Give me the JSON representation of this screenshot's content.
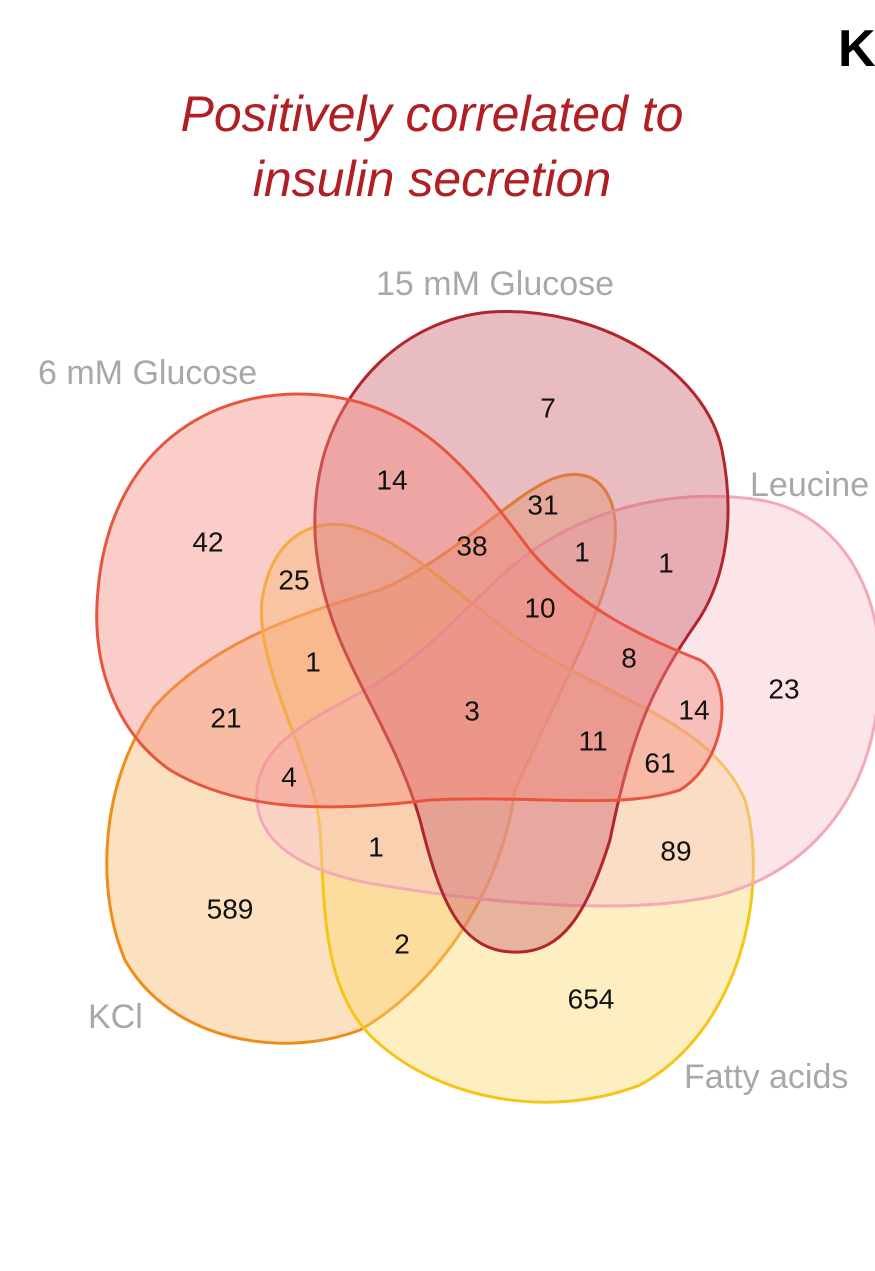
{
  "panel_letter": "K",
  "title_lines": [
    "Positively correlated to",
    "insulin secretion"
  ],
  "sets": [
    {
      "key": "g6",
      "label": "6 mM Glucose",
      "fill": "#f4877c",
      "stroke": "#e8553e"
    },
    {
      "key": "g15",
      "label": "15 mM Glucose",
      "fill": "#c8606c",
      "stroke": "#b0262c"
    },
    {
      "key": "leu",
      "label": "Leucine",
      "fill": "#f9c1ca",
      "stroke": "#f4a9b6"
    },
    {
      "key": "fa",
      "label": "Fatty acids",
      "fill": "#fcd86e",
      "stroke": "#f5c518"
    },
    {
      "key": "kcl",
      "label": "KCl",
      "fill": "#f9b768",
      "stroke": "#ee8d1a"
    }
  ],
  "chart_data": {
    "type": "venn",
    "set_names": [
      "6 mM Glucose",
      "15 mM Glucose",
      "Leucine",
      "Fatty acids",
      "KCl"
    ],
    "counts": [
      {
        "value": "7",
        "sets": [
          "15 mM Glucose"
        ]
      },
      {
        "value": "14",
        "sets": [
          "6 mM Glucose",
          "15 mM Glucose"
        ]
      },
      {
        "value": "42",
        "sets": [
          "6 mM Glucose"
        ]
      },
      {
        "value": "31",
        "sets": [
          "15 mM Glucose",
          "KCl"
        ]
      },
      {
        "value": "38",
        "sets": [
          "6 mM Glucose",
          "15 mM Glucose",
          "KCl"
        ]
      },
      {
        "value": "1",
        "sets": [
          "15 mM Glucose",
          "Leucine",
          "KCl"
        ]
      },
      {
        "value": "1",
        "sets": [
          "15 mM Glucose",
          "Leucine"
        ]
      },
      {
        "value": "25",
        "sets": [
          "6 mM Glucose",
          "Fatty acids"
        ]
      },
      {
        "value": "10",
        "sets": [
          "6 mM Glucose",
          "15 mM Glucose",
          "Leucine",
          "KCl"
        ]
      },
      {
        "value": "1",
        "sets": [
          "6 mM Glucose",
          "Fatty acids",
          "KCl"
        ]
      },
      {
        "value": "8",
        "sets": [
          "6 mM Glucose",
          "15 mM Glucose",
          "Leucine"
        ]
      },
      {
        "value": "23",
        "sets": [
          "Leucine"
        ]
      },
      {
        "value": "21",
        "sets": [
          "6 mM Glucose",
          "KCl"
        ]
      },
      {
        "value": "3",
        "sets": [
          "6 mM Glucose",
          "15 mM Glucose",
          "Leucine",
          "Fatty acids",
          "KCl"
        ]
      },
      {
        "value": "14",
        "sets": [
          "6 mM Glucose",
          "Leucine"
        ]
      },
      {
        "value": "11",
        "sets": [
          "6 mM Glucose",
          "15 mM Glucose",
          "Leucine",
          "Fatty acids"
        ]
      },
      {
        "value": "61",
        "sets": [
          "6 mM Glucose",
          "Leucine",
          "Fatty acids"
        ]
      },
      {
        "value": "4",
        "sets": [
          "6 mM Glucose",
          "Leucine",
          "KCl"
        ]
      },
      {
        "value": "1",
        "sets": [
          "Leucine",
          "Fatty acids",
          "KCl"
        ]
      },
      {
        "value": "89",
        "sets": [
          "Leucine",
          "Fatty acids"
        ]
      },
      {
        "value": "589",
        "sets": [
          "KCl"
        ]
      },
      {
        "value": "2",
        "sets": [
          "Fatty acids",
          "KCl"
        ]
      },
      {
        "value": "654",
        "sets": [
          "Fatty acids"
        ]
      }
    ]
  }
}
